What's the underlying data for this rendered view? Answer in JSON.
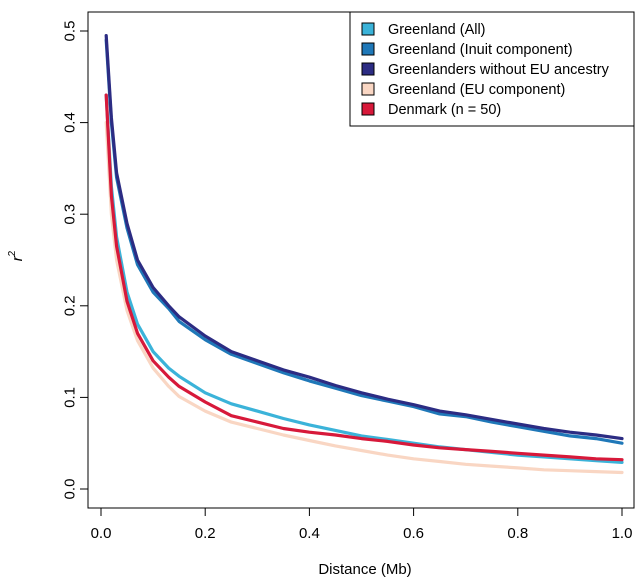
{
  "chart_data": {
    "type": "line",
    "title": "",
    "xlabel": "Distance (Mb)",
    "ylabel": "r",
    "ylabel_superscript": "2",
    "xlim": [
      0,
      1.0
    ],
    "ylim": [
      0,
      0.5
    ],
    "x_ticks": [
      "0.0",
      "0.2",
      "0.4",
      "0.6",
      "0.8",
      "1.0"
    ],
    "y_ticks": [
      "0.0",
      "0.1",
      "0.2",
      "0.3",
      "0.4",
      "0.5"
    ],
    "legend_position": "top-right",
    "x": [
      0.01,
      0.02,
      0.03,
      0.05,
      0.07,
      0.1,
      0.13,
      0.15,
      0.2,
      0.25,
      0.3,
      0.35,
      0.4,
      0.45,
      0.5,
      0.55,
      0.6,
      0.65,
      0.7,
      0.75,
      0.8,
      0.85,
      0.9,
      0.95,
      1.0
    ],
    "series": [
      {
        "name": "Greenland (All)",
        "color": "#3bb3d9",
        "values": [
          0.43,
          0.33,
          0.275,
          0.215,
          0.18,
          0.15,
          0.132,
          0.123,
          0.105,
          0.093,
          0.085,
          0.077,
          0.07,
          0.064,
          0.058,
          0.054,
          0.05,
          0.046,
          0.043,
          0.04,
          0.037,
          0.035,
          0.033,
          0.031,
          0.029
        ]
      },
      {
        "name": "Greenland (Inuit component)",
        "color": "#1f78b8",
        "values": [
          0.49,
          0.4,
          0.34,
          0.285,
          0.245,
          0.215,
          0.197,
          0.183,
          0.163,
          0.147,
          0.137,
          0.127,
          0.118,
          0.11,
          0.102,
          0.096,
          0.09,
          0.082,
          0.079,
          0.073,
          0.068,
          0.063,
          0.058,
          0.055,
          0.05
        ]
      },
      {
        "name": "Greenlanders without EU ancestry",
        "color": "#2c2c83",
        "values": [
          0.495,
          0.405,
          0.345,
          0.29,
          0.25,
          0.22,
          0.2,
          0.188,
          0.167,
          0.15,
          0.14,
          0.13,
          0.122,
          0.113,
          0.105,
          0.098,
          0.092,
          0.085,
          0.081,
          0.076,
          0.071,
          0.066,
          0.062,
          0.059,
          0.055
        ]
      },
      {
        "name": "Greenland (EU component)",
        "color": "#f9d6c3",
        "values": [
          0.4,
          0.3,
          0.25,
          0.195,
          0.162,
          0.132,
          0.112,
          0.101,
          0.085,
          0.073,
          0.066,
          0.059,
          0.053,
          0.047,
          0.042,
          0.037,
          0.033,
          0.03,
          0.027,
          0.025,
          0.023,
          0.021,
          0.02,
          0.019,
          0.018
        ]
      },
      {
        "name": "Denmark (n = 50)",
        "color": "#d7193a",
        "values": [
          0.43,
          0.32,
          0.265,
          0.205,
          0.17,
          0.14,
          0.122,
          0.112,
          0.095,
          0.08,
          0.073,
          0.066,
          0.062,
          0.059,
          0.055,
          0.052,
          0.048,
          0.045,
          0.043,
          0.041,
          0.039,
          0.037,
          0.035,
          0.033,
          0.032
        ]
      }
    ]
  }
}
